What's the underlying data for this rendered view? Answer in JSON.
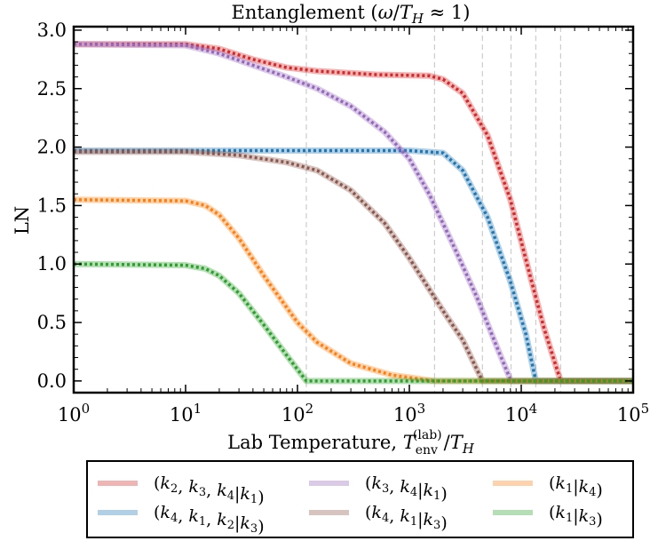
{
  "chart_data": {
    "type": "line",
    "title": "Entanglement (ω/T_H ≈ 1)",
    "xlabel": "Lab Temperature, T_env^(lab)/T_H",
    "ylabel": "LN",
    "xscale": "log",
    "xlim": [
      1,
      100000
    ],
    "ylim": [
      -0.1,
      3.03
    ],
    "grid": false,
    "x_tick_labels": [
      "10^0",
      "10^1",
      "10^2",
      "10^3",
      "10^4",
      "10^5"
    ],
    "y_tick_labels": [
      "0.0",
      "0.5",
      "1.0",
      "1.5",
      "2.0",
      "2.5",
      "3.0"
    ],
    "vertical_reference_lines": [
      120,
      1680,
      4500,
      8100,
      13500,
      22500
    ],
    "legend_position": "below plot",
    "series": [
      {
        "name": "(k2,k3,k4|k1)",
        "color": "#d62728",
        "points": [
          [
            1,
            2.88
          ],
          [
            10,
            2.88
          ],
          [
            20,
            2.84
          ],
          [
            40,
            2.75
          ],
          [
            80,
            2.68
          ],
          [
            150,
            2.65
          ],
          [
            500,
            2.62
          ],
          [
            1500,
            2.61
          ],
          [
            2000,
            2.58
          ],
          [
            3000,
            2.46
          ],
          [
            5000,
            2.1
          ],
          [
            8000,
            1.55
          ],
          [
            12000,
            0.9
          ],
          [
            16000,
            0.45
          ],
          [
            22500,
            0
          ],
          [
            100000,
            0
          ]
        ]
      },
      {
        "name": "(k4,k1,k2|k3)",
        "color": "#1f77b4",
        "points": [
          [
            1,
            1.97
          ],
          [
            100,
            1.97
          ],
          [
            1000,
            1.97
          ],
          [
            2000,
            1.95
          ],
          [
            3000,
            1.8
          ],
          [
            5000,
            1.4
          ],
          [
            8000,
            0.85
          ],
          [
            11000,
            0.4
          ],
          [
            13500,
            0
          ],
          [
            100000,
            0
          ]
        ]
      },
      {
        "name": "(k3,k4|k1)",
        "color": "#9467bd",
        "points": [
          [
            1,
            2.88
          ],
          [
            10,
            2.87
          ],
          [
            20,
            2.8
          ],
          [
            40,
            2.7
          ],
          [
            80,
            2.6
          ],
          [
            150,
            2.5
          ],
          [
            300,
            2.35
          ],
          [
            600,
            2.13
          ],
          [
            1000,
            1.9
          ],
          [
            1500,
            1.6
          ],
          [
            2500,
            1.15
          ],
          [
            4000,
            0.72
          ],
          [
            6000,
            0.3
          ],
          [
            8100,
            0
          ],
          [
            100000,
            0
          ]
        ]
      },
      {
        "name": "(k4,k1|k3)",
        "color": "#8c564b",
        "points": [
          [
            1,
            1.96
          ],
          [
            10,
            1.96
          ],
          [
            30,
            1.93
          ],
          [
            80,
            1.87
          ],
          [
            150,
            1.8
          ],
          [
            300,
            1.63
          ],
          [
            600,
            1.35
          ],
          [
            1000,
            1.05
          ],
          [
            2000,
            0.6
          ],
          [
            3000,
            0.35
          ],
          [
            4500,
            0
          ],
          [
            100000,
            0
          ]
        ]
      },
      {
        "name": "(k1|k4)",
        "color": "#ff7f0e",
        "points": [
          [
            1,
            1.55
          ],
          [
            10,
            1.54
          ],
          [
            15,
            1.5
          ],
          [
            20,
            1.42
          ],
          [
            30,
            1.22
          ],
          [
            50,
            0.9
          ],
          [
            100,
            0.5
          ],
          [
            150,
            0.33
          ],
          [
            300,
            0.15
          ],
          [
            700,
            0.05
          ],
          [
            1680,
            0
          ],
          [
            100000,
            0
          ]
        ]
      },
      {
        "name": "(k1|k3)",
        "color": "#2ca02c",
        "points": [
          [
            1,
            1.0
          ],
          [
            10,
            0.99
          ],
          [
            15,
            0.96
          ],
          [
            20,
            0.9
          ],
          [
            30,
            0.75
          ],
          [
            50,
            0.48
          ],
          [
            80,
            0.22
          ],
          [
            120,
            0
          ],
          [
            100000,
            0
          ]
        ]
      }
    ]
  }
}
